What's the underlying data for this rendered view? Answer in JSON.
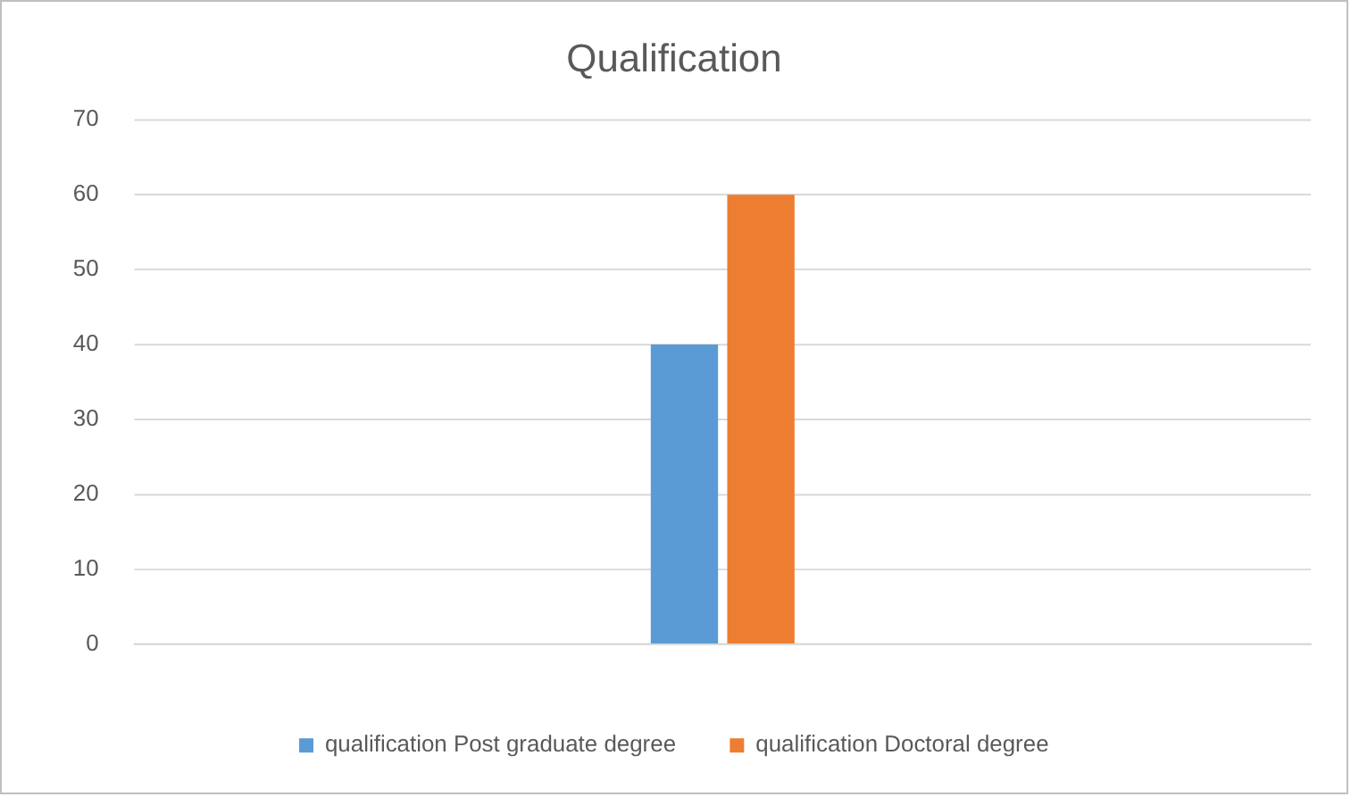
{
  "chart_data": {
    "type": "bar",
    "title": "Qualification",
    "categories": [
      null
    ],
    "series": [
      {
        "name": "qualification Post graduate degree",
        "color": "#5b9bd5",
        "values": [
          40
        ]
      },
      {
        "name": "qualification Doctoral degree",
        "color": "#ed7d31",
        "values": [
          60
        ]
      }
    ],
    "ylim": [
      0,
      70
    ],
    "yticks": [
      0,
      10,
      20,
      30,
      40,
      50,
      60,
      70
    ],
    "grid": "y",
    "legend": "bottom"
  }
}
